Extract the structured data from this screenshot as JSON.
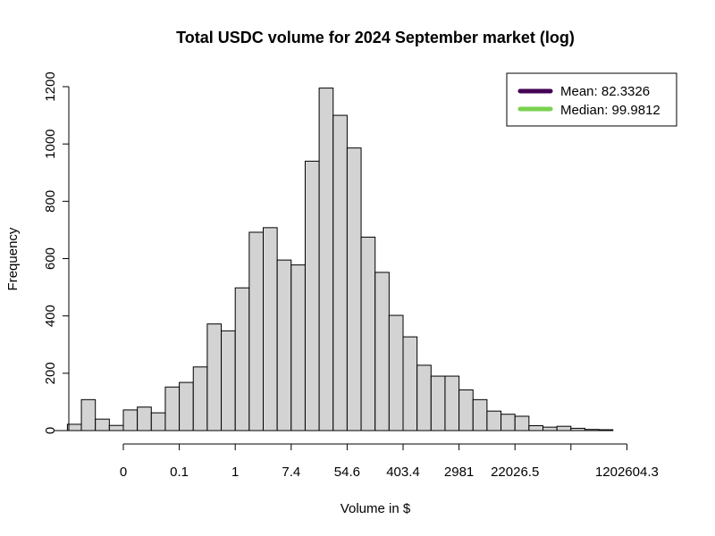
{
  "chart_data": {
    "type": "bar",
    "title": "Total USDC volume for 2024 September market (log)",
    "xlabel": "Volume in $",
    "ylabel": "Frequency",
    "ylim": [
      0,
      1200
    ],
    "y_ticks": [
      0,
      200,
      400,
      600,
      800,
      1000,
      1200
    ],
    "x_tick_labels": [
      "0",
      "0.1",
      "1",
      "7.4",
      "54.6",
      "403.4",
      "2981",
      "22026.5",
      "",
      "1202604.3"
    ],
    "bin_start": -2,
    "bin_width": 0.5,
    "values": [
      22,
      108,
      40,
      18,
      72,
      82,
      62,
      152,
      168,
      222,
      372,
      348,
      498,
      692,
      708,
      595,
      578,
      940,
      1195,
      1100,
      986,
      675,
      552,
      402,
      327,
      228,
      190,
      190,
      142,
      108,
      68,
      57,
      50,
      17,
      12,
      15,
      8,
      4,
      3
    ],
    "legend": [
      {
        "label": "Mean: 82.3326",
        "color": "#440154"
      },
      {
        "label": "Median: 99.9812",
        "color": "#7ad151"
      }
    ],
    "legend_position": "top-right",
    "bar_color": "#d3d3d3",
    "grid": false
  }
}
